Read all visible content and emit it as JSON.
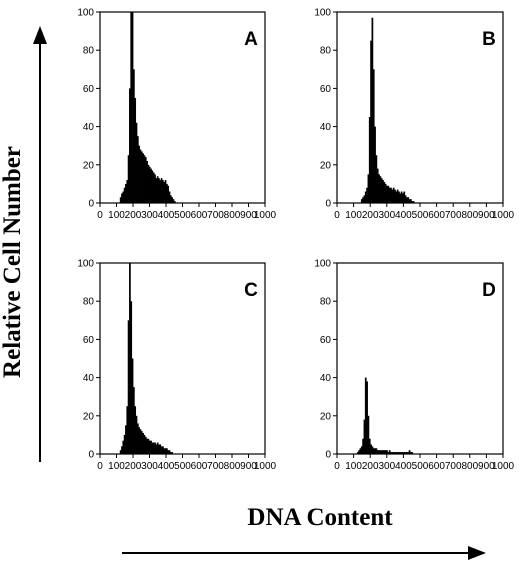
{
  "figure": {
    "ylabel": "Relative Cell Number",
    "xlabel": "DNA Content"
  },
  "chart_data": [
    {
      "type": "bar",
      "panel": "A",
      "xlim": [
        0,
        1000
      ],
      "ylim": [
        0,
        100
      ],
      "xticks": [
        0,
        100,
        200,
        300,
        400,
        500,
        600,
        700,
        800,
        900,
        1000
      ],
      "yticks": [
        0,
        20,
        40,
        60,
        80,
        100
      ],
      "bin_width": 8,
      "bins": [
        [
          120,
          3
        ],
        [
          128,
          5
        ],
        [
          136,
          6
        ],
        [
          144,
          8
        ],
        [
          152,
          10
        ],
        [
          160,
          12
        ],
        [
          168,
          25
        ],
        [
          176,
          60
        ],
        [
          184,
          100
        ],
        [
          192,
          100
        ],
        [
          200,
          70
        ],
        [
          208,
          55
        ],
        [
          216,
          42
        ],
        [
          224,
          35
        ],
        [
          232,
          30
        ],
        [
          240,
          28
        ],
        [
          248,
          27
        ],
        [
          256,
          26
        ],
        [
          264,
          25
        ],
        [
          272,
          24
        ],
        [
          280,
          22
        ],
        [
          288,
          20
        ],
        [
          296,
          19
        ],
        [
          304,
          18
        ],
        [
          312,
          17
        ],
        [
          320,
          16
        ],
        [
          328,
          15
        ],
        [
          336,
          13
        ],
        [
          344,
          14
        ],
        [
          352,
          13
        ],
        [
          360,
          12
        ],
        [
          368,
          13
        ],
        [
          376,
          12
        ],
        [
          384,
          11
        ],
        [
          392,
          12
        ],
        [
          400,
          10
        ],
        [
          408,
          9
        ],
        [
          416,
          6
        ],
        [
          424,
          4
        ],
        [
          432,
          3
        ],
        [
          440,
          2
        ],
        [
          448,
          1
        ]
      ]
    },
    {
      "type": "bar",
      "panel": "B",
      "xlim": [
        0,
        1000
      ],
      "ylim": [
        0,
        100
      ],
      "xticks": [
        0,
        100,
        200,
        300,
        400,
        500,
        600,
        700,
        800,
        900,
        1000
      ],
      "yticks": [
        0,
        20,
        40,
        60,
        80,
        100
      ],
      "bin_width": 8,
      "bins": [
        [
          144,
          2
        ],
        [
          152,
          3
        ],
        [
          160,
          4
        ],
        [
          168,
          6
        ],
        [
          176,
          8
        ],
        [
          184,
          15
        ],
        [
          192,
          45
        ],
        [
          200,
          85
        ],
        [
          208,
          97
        ],
        [
          216,
          70
        ],
        [
          224,
          40
        ],
        [
          232,
          25
        ],
        [
          240,
          18
        ],
        [
          248,
          15
        ],
        [
          256,
          14
        ],
        [
          264,
          13
        ],
        [
          272,
          12
        ],
        [
          280,
          11
        ],
        [
          288,
          10
        ],
        [
          296,
          9
        ],
        [
          304,
          9
        ],
        [
          312,
          8
        ],
        [
          320,
          8
        ],
        [
          328,
          7
        ],
        [
          336,
          8
        ],
        [
          344,
          7
        ],
        [
          352,
          6
        ],
        [
          360,
          7
        ],
        [
          368,
          6
        ],
        [
          376,
          5
        ],
        [
          384,
          6
        ],
        [
          392,
          5
        ],
        [
          400,
          6
        ],
        [
          408,
          4
        ],
        [
          416,
          3
        ],
        [
          424,
          3
        ],
        [
          432,
          2
        ],
        [
          440,
          2
        ],
        [
          448,
          1
        ],
        [
          456,
          1
        ]
      ]
    },
    {
      "type": "bar",
      "panel": "C",
      "xlim": [
        0,
        1000
      ],
      "ylim": [
        0,
        100
      ],
      "xticks": [
        0,
        100,
        200,
        300,
        400,
        500,
        600,
        700,
        800,
        900,
        1000
      ],
      "yticks": [
        0,
        20,
        40,
        60,
        80,
        100
      ],
      "bin_width": 8,
      "bins": [
        [
          120,
          2
        ],
        [
          128,
          4
        ],
        [
          136,
          7
        ],
        [
          144,
          10
        ],
        [
          152,
          15
        ],
        [
          160,
          25
        ],
        [
          168,
          70
        ],
        [
          176,
          100
        ],
        [
          184,
          80
        ],
        [
          192,
          50
        ],
        [
          200,
          35
        ],
        [
          208,
          25
        ],
        [
          216,
          20
        ],
        [
          224,
          16
        ],
        [
          232,
          14
        ],
        [
          240,
          13
        ],
        [
          248,
          12
        ],
        [
          256,
          11
        ],
        [
          264,
          10
        ],
        [
          272,
          9
        ],
        [
          280,
          8
        ],
        [
          288,
          8
        ],
        [
          296,
          7
        ],
        [
          304,
          7
        ],
        [
          312,
          6
        ],
        [
          320,
          6
        ],
        [
          328,
          6
        ],
        [
          336,
          5
        ],
        [
          344,
          6
        ],
        [
          352,
          5
        ],
        [
          360,
          5
        ],
        [
          368,
          4
        ],
        [
          376,
          4
        ],
        [
          384,
          3
        ],
        [
          392,
          3
        ],
        [
          400,
          3
        ],
        [
          408,
          2
        ],
        [
          416,
          2
        ],
        [
          424,
          1
        ],
        [
          432,
          1
        ]
      ]
    },
    {
      "type": "bar",
      "panel": "D",
      "xlim": [
        0,
        1000
      ],
      "ylim": [
        0,
        100
      ],
      "xticks": [
        0,
        100,
        200,
        300,
        400,
        500,
        600,
        700,
        800,
        900,
        1000
      ],
      "yticks": [
        0,
        20,
        40,
        60,
        80,
        100
      ],
      "bin_width": 8,
      "bins": [
        [
          120,
          1
        ],
        [
          128,
          2
        ],
        [
          136,
          3
        ],
        [
          144,
          4
        ],
        [
          152,
          8
        ],
        [
          160,
          18
        ],
        [
          168,
          40
        ],
        [
          176,
          38
        ],
        [
          184,
          20
        ],
        [
          192,
          8
        ],
        [
          200,
          5
        ],
        [
          208,
          4
        ],
        [
          216,
          3
        ],
        [
          224,
          3
        ],
        [
          232,
          3
        ],
        [
          240,
          2
        ],
        [
          248,
          2
        ],
        [
          256,
          2
        ],
        [
          264,
          2
        ],
        [
          272,
          2
        ],
        [
          280,
          2
        ],
        [
          288,
          2
        ],
        [
          296,
          2
        ],
        [
          304,
          1
        ],
        [
          312,
          2
        ],
        [
          320,
          1
        ],
        [
          328,
          1
        ],
        [
          336,
          1
        ],
        [
          344,
          1
        ],
        [
          352,
          1
        ],
        [
          360,
          1
        ],
        [
          368,
          1
        ],
        [
          376,
          1
        ],
        [
          384,
          1
        ],
        [
          392,
          1
        ],
        [
          400,
          1
        ],
        [
          408,
          1
        ],
        [
          416,
          1
        ],
        [
          424,
          1
        ],
        [
          432,
          2
        ],
        [
          440,
          1
        ],
        [
          448,
          1
        ]
      ]
    }
  ]
}
